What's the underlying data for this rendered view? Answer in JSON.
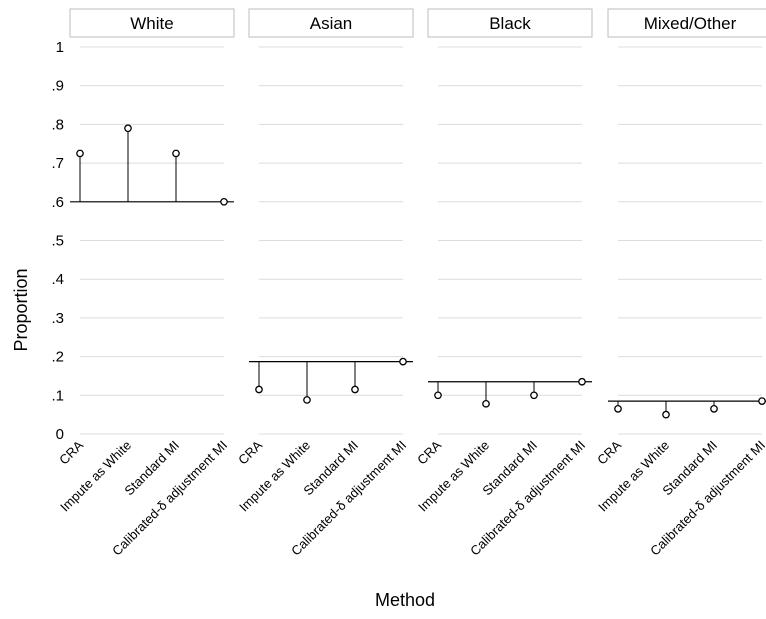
{
  "chart_data": {
    "type": "scatter",
    "title": "",
    "xlabel": "Method",
    "ylabel": "Proportion",
    "ylim": [
      0,
      1
    ],
    "y_ticks": [
      "0",
      ".1",
      ".2",
      ".3",
      ".4",
      ".5",
      ".6",
      ".7",
      ".8",
      ".9",
      "1"
    ],
    "grid": true,
    "categories": [
      "CRA",
      "Impute as White",
      "Standard MI",
      "Calibrated-δ adjustment MI"
    ],
    "panels": [
      {
        "name": "White",
        "reference": 0.6,
        "values": [
          0.725,
          0.79,
          0.725,
          0.6
        ]
      },
      {
        "name": "Asian",
        "reference": 0.187,
        "values": [
          0.115,
          0.088,
          0.115,
          0.187
        ]
      },
      {
        "name": "Black",
        "reference": 0.135,
        "values": [
          0.1,
          0.078,
          0.1,
          0.135
        ]
      },
      {
        "name": "Mixed/Other",
        "reference": 0.085,
        "values": [
          0.065,
          0.05,
          0.065,
          0.085
        ]
      }
    ]
  }
}
